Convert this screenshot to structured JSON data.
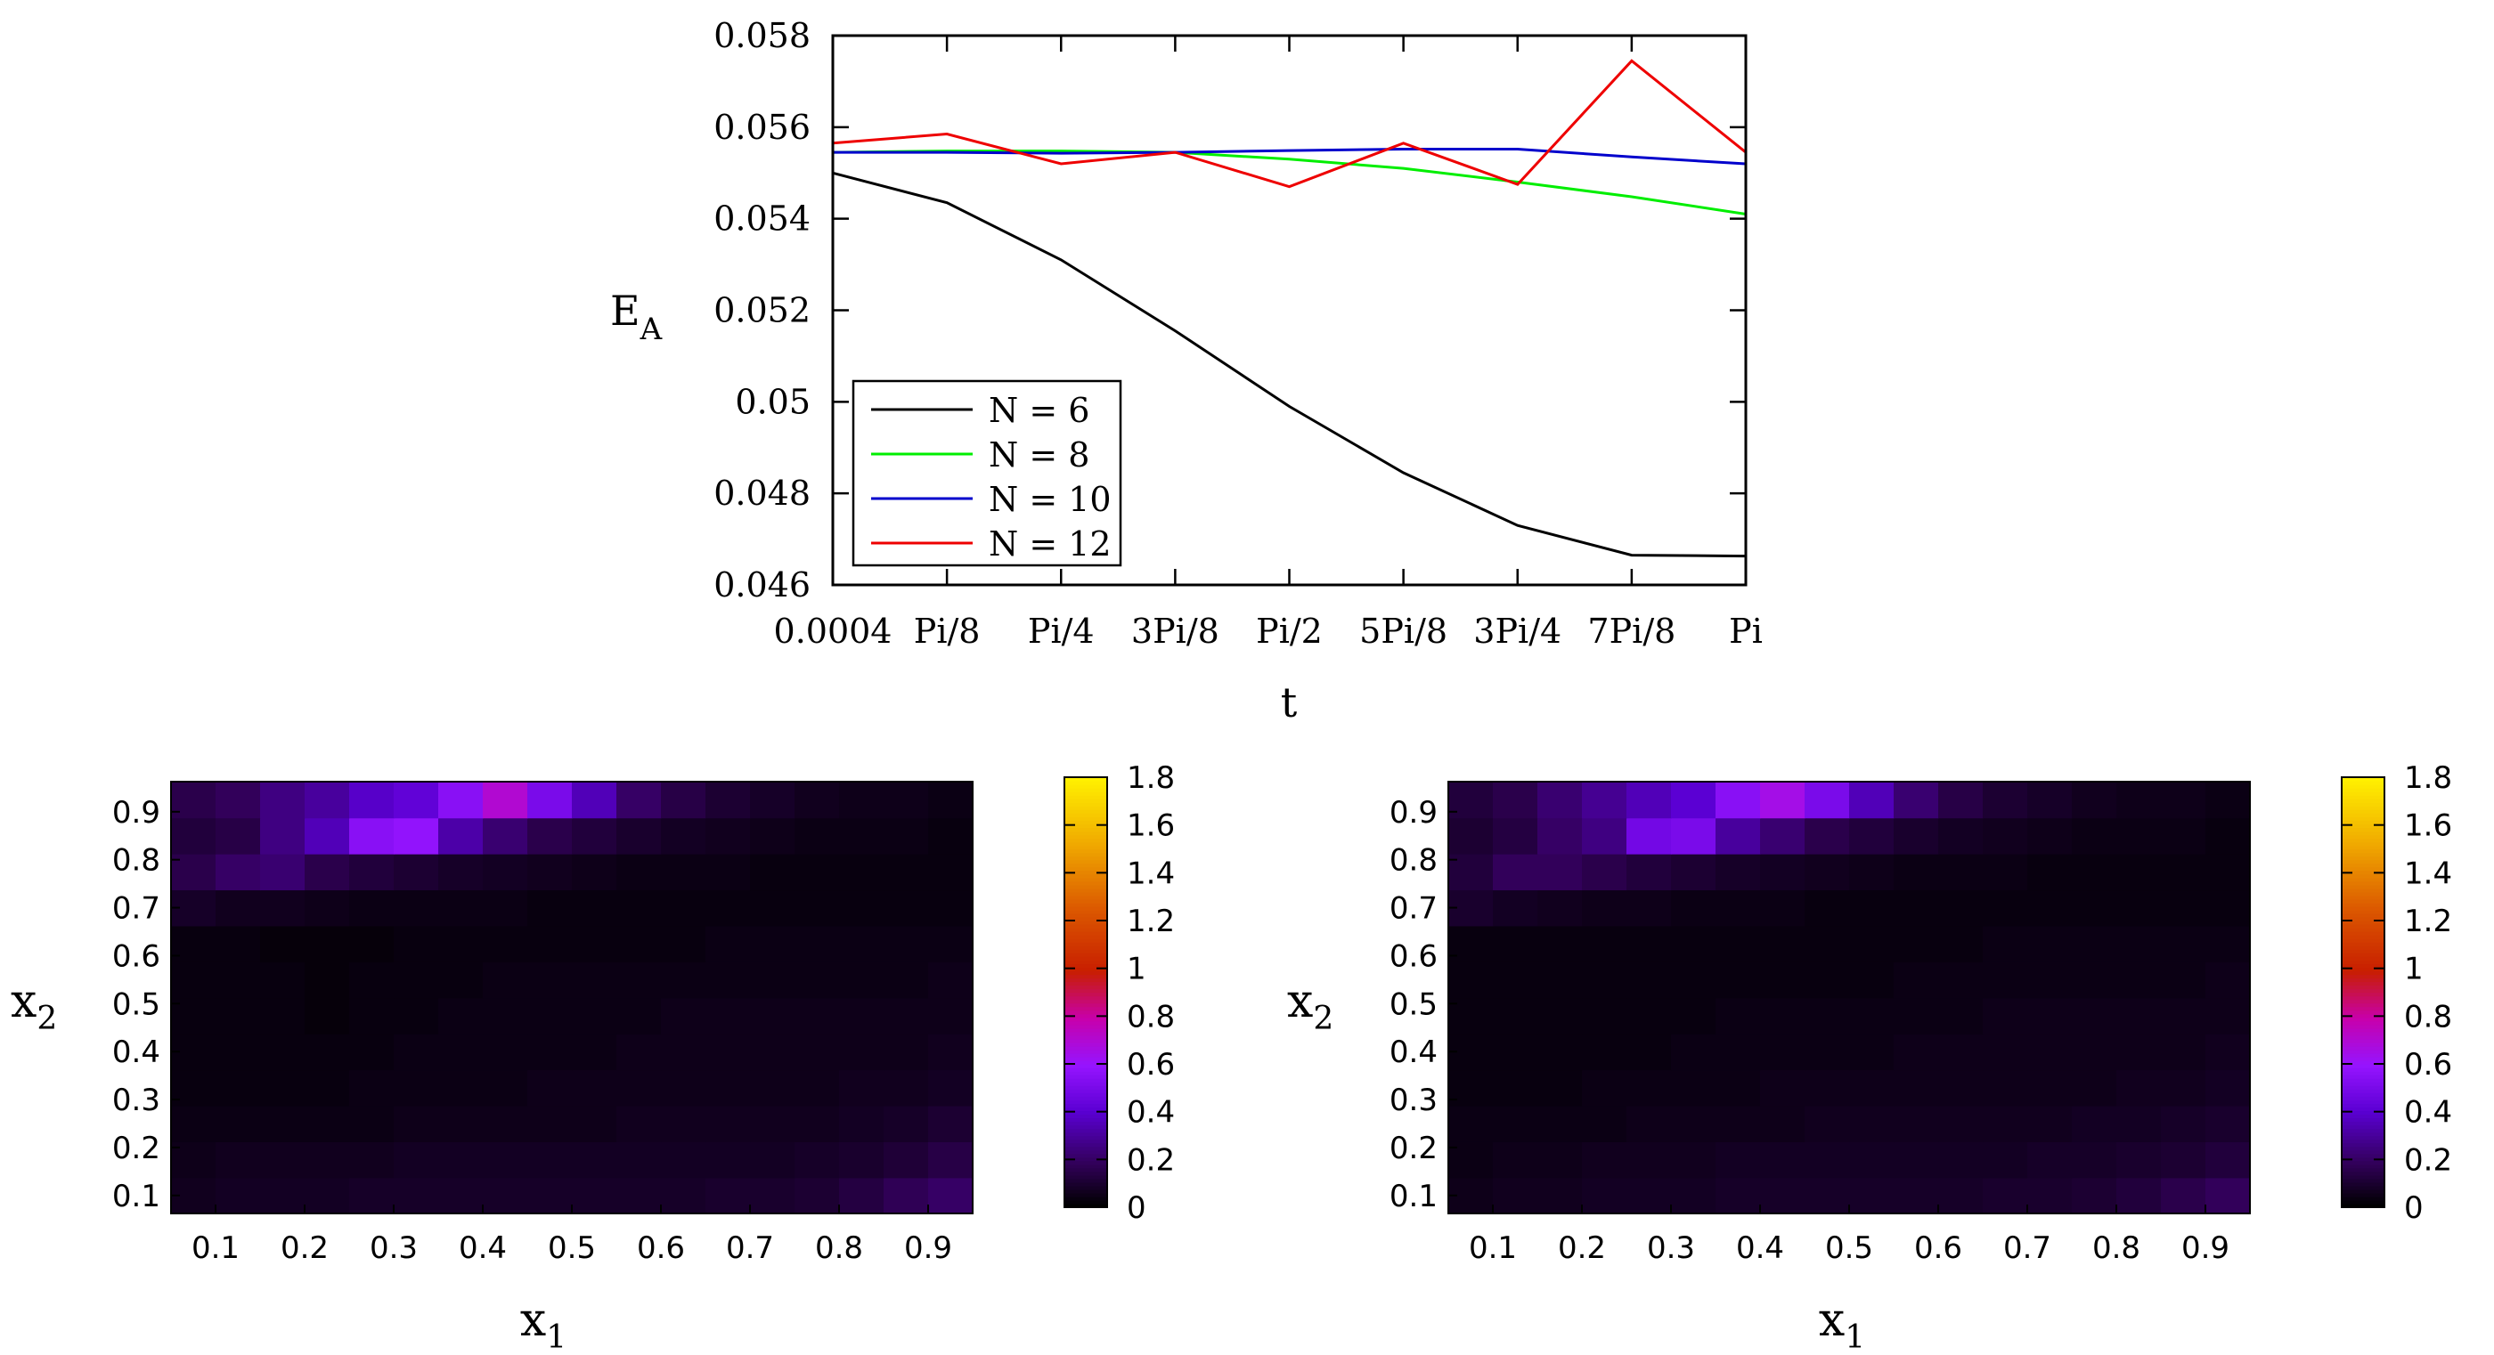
{
  "chart_data": [
    {
      "type": "line",
      "title": "",
      "xlabel": "t",
      "ylabel": "E",
      "ylabel_subscript": "A",
      "categories": [
        "0.0004",
        "Pi/8",
        "Pi/4",
        "3Pi/8",
        "Pi/2",
        "5Pi/8",
        "3Pi/4",
        "7Pi/8",
        "Pi"
      ],
      "ylim": [
        0.046,
        0.058
      ],
      "yticks": [
        0.046,
        0.048,
        0.05,
        0.052,
        0.054,
        0.056,
        0.058
      ],
      "ytick_labels": [
        "0.046",
        "0.048",
        "0.05",
        "0.052",
        "0.054",
        "0.056",
        "0.058"
      ],
      "legend_position": "bottom-left",
      "series": [
        {
          "name": "N = 6",
          "color": "#000000",
          "values": [
            0.055,
            0.05435,
            0.0531,
            0.05155,
            0.0499,
            0.04845,
            0.0473,
            0.04665,
            0.04663
          ]
        },
        {
          "name": "N = 8",
          "color": "#00ee00",
          "values": [
            0.05545,
            0.05548,
            0.05548,
            0.05545,
            0.0553,
            0.0551,
            0.0548,
            0.05448,
            0.0541
          ]
        },
        {
          "name": "N = 10",
          "color": "#0000cc",
          "values": [
            0.05545,
            0.05545,
            0.05543,
            0.05545,
            0.05549,
            0.05552,
            0.05552,
            0.05535,
            0.0552
          ]
        },
        {
          "name": "N = 12",
          "color": "#ee0000",
          "values": [
            0.05565,
            0.05585,
            0.0552,
            0.05545,
            0.0547,
            0.05565,
            0.05475,
            0.05745,
            0.05545
          ]
        }
      ]
    },
    {
      "type": "heatmap",
      "xlabel": "x",
      "xlabel_subscript": "1",
      "ylabel": "x",
      "ylabel_subscript": "2",
      "xticks": [
        "0.1",
        "0.2",
        "0.3",
        "0.4",
        "0.5",
        "0.6",
        "0.7",
        "0.8",
        "0.9"
      ],
      "yticks": [
        "0.1",
        "0.2",
        "0.3",
        "0.4",
        "0.5",
        "0.6",
        "0.7",
        "0.8",
        "0.9"
      ],
      "colorbar_ticks": [
        "0",
        "0.2",
        "0.4",
        "0.6",
        "0.8",
        "1",
        "1.2",
        "1.4",
        "1.6",
        "1.8"
      ],
      "crange": [
        0,
        1.8
      ],
      "grid": [
        [
          0.06,
          0.07,
          0.07,
          0.07,
          0.08,
          0.08,
          0.08,
          0.08,
          0.08,
          0.08,
          0.08,
          0.08,
          0.09,
          0.09,
          0.1,
          0.13,
          0.17,
          0.2
        ],
        [
          0.05,
          0.06,
          0.06,
          0.06,
          0.06,
          0.07,
          0.07,
          0.07,
          0.07,
          0.07,
          0.07,
          0.07,
          0.07,
          0.07,
          0.08,
          0.09,
          0.11,
          0.14
        ],
        [
          0.04,
          0.04,
          0.04,
          0.04,
          0.04,
          0.05,
          0.05,
          0.05,
          0.05,
          0.05,
          0.06,
          0.06,
          0.06,
          0.06,
          0.06,
          0.07,
          0.08,
          0.1
        ],
        [
          0.03,
          0.03,
          0.03,
          0.03,
          0.04,
          0.04,
          0.04,
          0.04,
          0.05,
          0.05,
          0.05,
          0.05,
          0.05,
          0.05,
          0.05,
          0.06,
          0.06,
          0.07
        ],
        [
          0.03,
          0.03,
          0.03,
          0.03,
          0.03,
          0.04,
          0.04,
          0.04,
          0.04,
          0.04,
          0.05,
          0.05,
          0.05,
          0.05,
          0.05,
          0.05,
          0.05,
          0.06
        ],
        [
          0.03,
          0.03,
          0.03,
          0.02,
          0.03,
          0.03,
          0.04,
          0.04,
          0.04,
          0.04,
          0.04,
          0.05,
          0.05,
          0.05,
          0.05,
          0.05,
          0.05,
          0.05
        ],
        [
          0.03,
          0.03,
          0.03,
          0.02,
          0.03,
          0.03,
          0.03,
          0.04,
          0.04,
          0.04,
          0.04,
          0.04,
          0.04,
          0.04,
          0.04,
          0.04,
          0.04,
          0.05
        ],
        [
          0.03,
          0.03,
          0.02,
          0.02,
          0.02,
          0.03,
          0.03,
          0.03,
          0.03,
          0.03,
          0.03,
          0.03,
          0.04,
          0.04,
          0.04,
          0.04,
          0.04,
          0.04
        ],
        [
          0.08,
          0.06,
          0.06,
          0.05,
          0.04,
          0.04,
          0.04,
          0.04,
          0.03,
          0.03,
          0.03,
          0.03,
          0.03,
          0.03,
          0.03,
          0.03,
          0.03,
          0.03
        ],
        [
          0.15,
          0.2,
          0.22,
          0.15,
          0.12,
          0.1,
          0.08,
          0.07,
          0.06,
          0.05,
          0.04,
          0.04,
          0.04,
          0.03,
          0.03,
          0.03,
          0.03,
          0.03
        ],
        [
          0.12,
          0.14,
          0.25,
          0.35,
          0.55,
          0.58,
          0.32,
          0.22,
          0.15,
          0.12,
          0.09,
          0.07,
          0.06,
          0.05,
          0.04,
          0.04,
          0.04,
          0.03
        ],
        [
          0.15,
          0.18,
          0.25,
          0.3,
          0.38,
          0.42,
          0.55,
          0.7,
          0.5,
          0.35,
          0.2,
          0.14,
          0.1,
          0.08,
          0.06,
          0.05,
          0.05,
          0.04
        ]
      ]
    },
    {
      "type": "heatmap",
      "xlabel": "x",
      "xlabel_subscript": "1",
      "ylabel": "x",
      "ylabel_subscript": "2",
      "xticks": [
        "0.1",
        "0.2",
        "0.3",
        "0.4",
        "0.5",
        "0.6",
        "0.7",
        "0.8",
        "0.9"
      ],
      "yticks": [
        "0.1",
        "0.2",
        "0.3",
        "0.4",
        "0.5",
        "0.6",
        "0.7",
        "0.8",
        "0.9"
      ],
      "colorbar_ticks": [
        "0",
        "0.2",
        "0.4",
        "0.6",
        "0.8",
        "1",
        "1.2",
        "1.4",
        "1.6",
        "1.8"
      ],
      "crange": [
        0,
        1.8
      ],
      "grid": [
        [
          0.05,
          0.06,
          0.06,
          0.07,
          0.07,
          0.07,
          0.08,
          0.08,
          0.08,
          0.08,
          0.08,
          0.08,
          0.09,
          0.09,
          0.1,
          0.12,
          0.15,
          0.18
        ],
        [
          0.04,
          0.05,
          0.05,
          0.06,
          0.06,
          0.06,
          0.07,
          0.07,
          0.07,
          0.07,
          0.07,
          0.07,
          0.07,
          0.08,
          0.08,
          0.09,
          0.1,
          0.12
        ],
        [
          0.04,
          0.04,
          0.04,
          0.04,
          0.05,
          0.05,
          0.05,
          0.05,
          0.06,
          0.06,
          0.06,
          0.06,
          0.06,
          0.06,
          0.07,
          0.07,
          0.08,
          0.09
        ],
        [
          0.03,
          0.03,
          0.03,
          0.04,
          0.04,
          0.04,
          0.04,
          0.05,
          0.05,
          0.05,
          0.05,
          0.05,
          0.05,
          0.05,
          0.05,
          0.06,
          0.06,
          0.07
        ],
        [
          0.03,
          0.03,
          0.03,
          0.03,
          0.03,
          0.04,
          0.04,
          0.04,
          0.04,
          0.04,
          0.05,
          0.05,
          0.05,
          0.05,
          0.05,
          0.05,
          0.05,
          0.06
        ],
        [
          0.03,
          0.03,
          0.03,
          0.03,
          0.03,
          0.03,
          0.04,
          0.04,
          0.04,
          0.04,
          0.04,
          0.04,
          0.05,
          0.05,
          0.05,
          0.05,
          0.05,
          0.05
        ],
        [
          0.03,
          0.03,
          0.03,
          0.03,
          0.03,
          0.03,
          0.03,
          0.03,
          0.03,
          0.03,
          0.04,
          0.04,
          0.04,
          0.04,
          0.04,
          0.04,
          0.04,
          0.05
        ],
        [
          0.03,
          0.03,
          0.03,
          0.03,
          0.03,
          0.03,
          0.03,
          0.03,
          0.03,
          0.03,
          0.03,
          0.03,
          0.04,
          0.04,
          0.04,
          0.04,
          0.04,
          0.04
        ],
        [
          0.09,
          0.07,
          0.06,
          0.05,
          0.05,
          0.04,
          0.04,
          0.04,
          0.03,
          0.03,
          0.03,
          0.03,
          0.03,
          0.03,
          0.03,
          0.03,
          0.03,
          0.03
        ],
        [
          0.12,
          0.18,
          0.18,
          0.15,
          0.12,
          0.1,
          0.08,
          0.07,
          0.06,
          0.05,
          0.04,
          0.04,
          0.04,
          0.03,
          0.03,
          0.03,
          0.03,
          0.03
        ],
        [
          0.1,
          0.13,
          0.2,
          0.25,
          0.48,
          0.5,
          0.3,
          0.22,
          0.15,
          0.12,
          0.09,
          0.07,
          0.06,
          0.05,
          0.04,
          0.04,
          0.04,
          0.03
        ],
        [
          0.12,
          0.15,
          0.22,
          0.28,
          0.35,
          0.4,
          0.55,
          0.65,
          0.5,
          0.35,
          0.22,
          0.14,
          0.1,
          0.08,
          0.06,
          0.05,
          0.05,
          0.04
        ]
      ]
    }
  ]
}
